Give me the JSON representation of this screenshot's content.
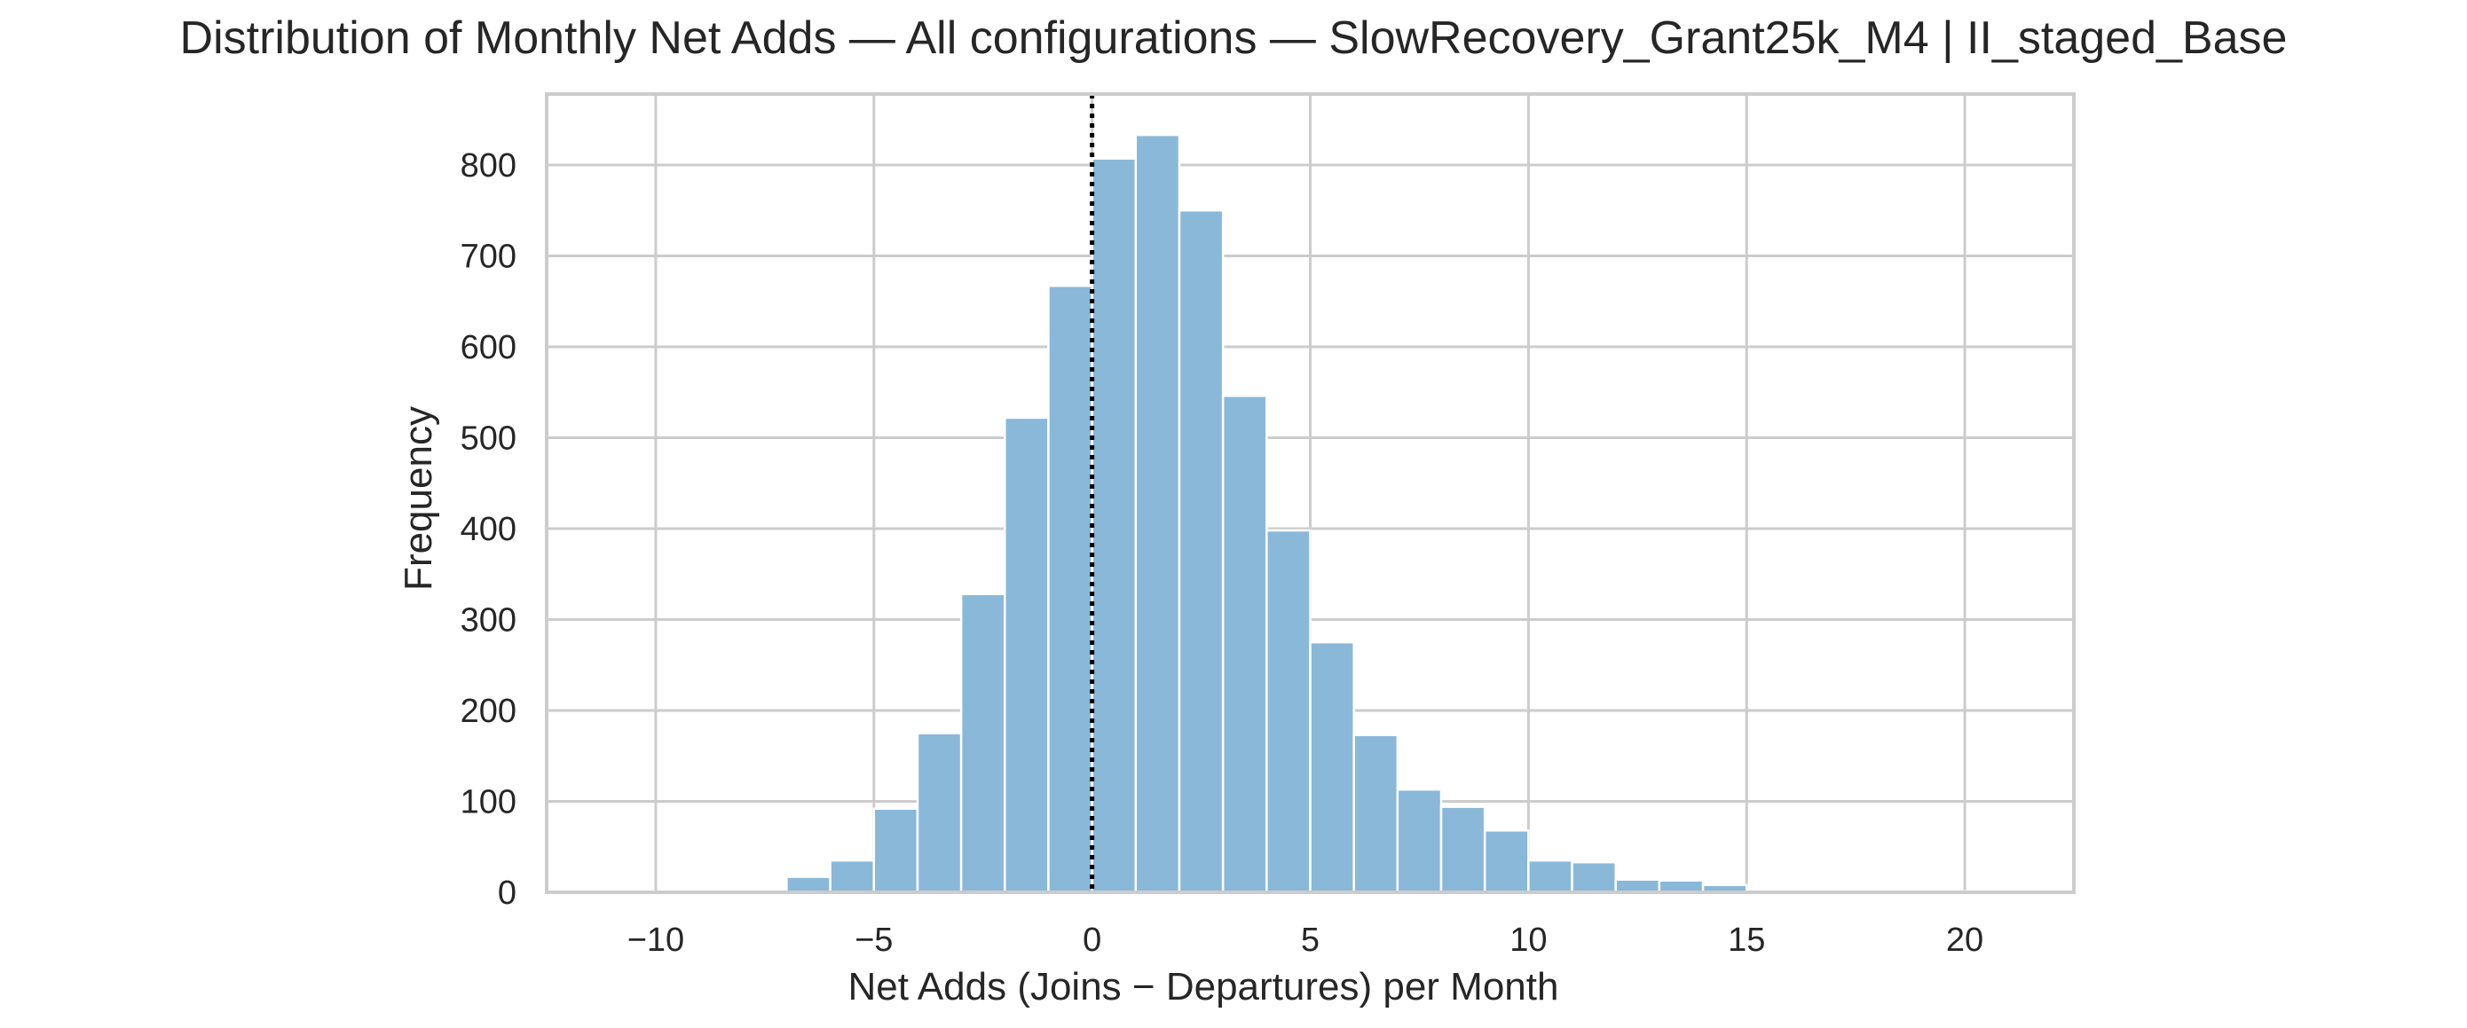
{
  "chart_data": {
    "type": "bar",
    "title": "Distribution of Monthly Net Adds — All configurations — SlowRecovery_Grant25k_M4 | II_staged_Base",
    "xlabel": "Net Adds (Joins − Departures) per Month",
    "ylabel": "Frequency",
    "xlim": [
      -12.5,
      22.5
    ],
    "ylim": [
      0,
      878
    ],
    "x_ticks": [
      -10,
      -5,
      0,
      5,
      10,
      15,
      20
    ],
    "x_tick_labels": [
      "−10",
      "−5",
      "0",
      "5",
      "10",
      "15",
      "20"
    ],
    "y_ticks": [
      0,
      100,
      200,
      300,
      400,
      500,
      600,
      700,
      800
    ],
    "y_tick_labels": [
      "0",
      "100",
      "200",
      "300",
      "400",
      "500",
      "600",
      "700",
      "800"
    ],
    "grid": true,
    "bar_color": "#8ab8d9",
    "bar_edge_color": "#ffffff",
    "vline": {
      "x": 0,
      "style": "dotted",
      "color": "#000000"
    },
    "bins": [
      {
        "start": -11.0,
        "end": -10.0,
        "count": 0
      },
      {
        "start": -10.0,
        "end": -9.0,
        "count": 0
      },
      {
        "start": -9.0,
        "end": -8.0,
        "count": 0
      },
      {
        "start": -8.0,
        "end": -7.0,
        "count": 0
      },
      {
        "start": -7.0,
        "end": -6.0,
        "count": 17
      },
      {
        "start": -6.0,
        "end": -5.0,
        "count": 35
      },
      {
        "start": -5.0,
        "end": -4.0,
        "count": 92
      },
      {
        "start": -4.0,
        "end": -3.0,
        "count": 175
      },
      {
        "start": -3.0,
        "end": -2.0,
        "count": 328
      },
      {
        "start": -2.0,
        "end": -1.0,
        "count": 522
      },
      {
        "start": -1.0,
        "end": 0.0,
        "count": 667
      },
      {
        "start": 0.0,
        "end": 1.0,
        "count": 807
      },
      {
        "start": 1.0,
        "end": 2.0,
        "count": 833
      },
      {
        "start": 2.0,
        "end": 3.0,
        "count": 750
      },
      {
        "start": 3.0,
        "end": 4.0,
        "count": 546
      },
      {
        "start": 4.0,
        "end": 5.0,
        "count": 398
      },
      {
        "start": 5.0,
        "end": 6.0,
        "count": 275
      },
      {
        "start": 6.0,
        "end": 7.0,
        "count": 173
      },
      {
        "start": 7.0,
        "end": 8.0,
        "count": 113
      },
      {
        "start": 8.0,
        "end": 9.0,
        "count": 94
      },
      {
        "start": 9.0,
        "end": 10.0,
        "count": 68
      },
      {
        "start": 10.0,
        "end": 11.0,
        "count": 35
      },
      {
        "start": 11.0,
        "end": 12.0,
        "count": 33
      },
      {
        "start": 12.0,
        "end": 13.0,
        "count": 14
      },
      {
        "start": 13.0,
        "end": 14.0,
        "count": 13
      },
      {
        "start": 14.0,
        "end": 15.0,
        "count": 8
      },
      {
        "start": 15.0,
        "end": 16.0,
        "count": 2
      },
      {
        "start": 16.0,
        "end": 17.0,
        "count": 2
      },
      {
        "start": 17.0,
        "end": 18.0,
        "count": 1
      },
      {
        "start": 18.0,
        "end": 19.0,
        "count": 1
      },
      {
        "start": 19.0,
        "end": 20.0,
        "count": 1
      },
      {
        "start": 20.0,
        "end": 21.0,
        "count": 1
      }
    ]
  }
}
